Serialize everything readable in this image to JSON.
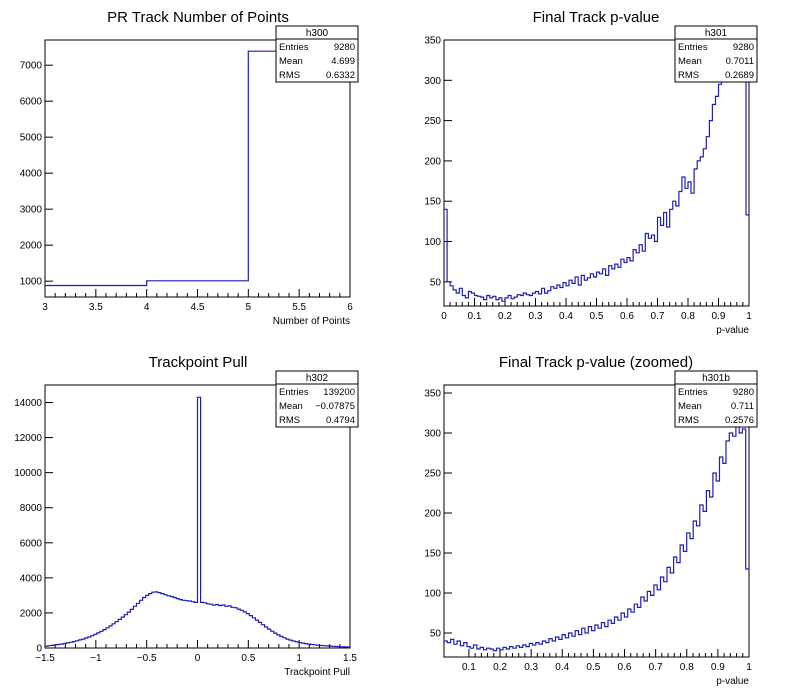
{
  "chart_data": [
    {
      "id": "h300",
      "type": "histogram",
      "title": "PR Track Number of Points",
      "xlabel": "Number of Points",
      "xlim": [
        3,
        6
      ],
      "ylim": [
        560,
        7700
      ],
      "x_ticks": [
        3,
        3.5,
        4,
        4.5,
        5,
        5.5,
        6
      ],
      "x_tick_labels": [
        "3",
        "3.5",
        "4",
        "4.5",
        "5",
        "5.5",
        "6"
      ],
      "y_ticks": [
        1000,
        2000,
        3000,
        4000,
        5000,
        6000,
        7000
      ],
      "y_tick_labels": [
        "1000",
        "2000",
        "3000",
        "4000",
        "5000",
        "6000",
        "7000"
      ],
      "bin_edges": [
        3,
        4,
        5,
        6
      ],
      "values": [
        880,
        1010,
        7390
      ],
      "stats": {
        "name": "h300",
        "rows": [
          {
            "label": "Entries",
            "value": "9280"
          },
          {
            "label": "Mean",
            "value": "4.699"
          },
          {
            "label": "RMS",
            "value": "0.6332"
          }
        ]
      }
    },
    {
      "id": "h301",
      "type": "histogram",
      "title": "Final Track p-value",
      "xlabel": "p-value",
      "xlim": [
        0,
        1
      ],
      "ylim": [
        20,
        350
      ],
      "x_ticks": [
        0,
        0.1,
        0.2,
        0.3,
        0.4,
        0.5,
        0.6,
        0.7,
        0.8,
        0.9,
        1
      ],
      "x_tick_labels": [
        "0",
        "0.1",
        "0.2",
        "0.3",
        "0.4",
        "0.5",
        "0.6",
        "0.7",
        "0.8",
        "0.9",
        "1"
      ],
      "y_ticks": [
        50,
        100,
        150,
        200,
        250,
        300,
        350
      ],
      "y_tick_labels": [
        "50",
        "100",
        "150",
        "200",
        "250",
        "300",
        "350"
      ],
      "bin_range": [
        0,
        1
      ],
      "values": [
        140,
        50,
        45,
        40,
        36,
        42,
        33,
        30,
        38,
        36,
        33,
        32,
        31,
        28,
        33,
        30,
        32,
        28,
        30,
        26,
        30,
        33,
        29,
        31,
        34,
        33,
        36,
        34,
        33,
        36,
        38,
        35,
        42,
        36,
        39,
        44,
        42,
        46,
        43,
        49,
        45,
        52,
        48,
        56,
        46,
        58,
        52,
        55,
        60,
        56,
        62,
        60,
        66,
        58,
        70,
        66,
        72,
        68,
        78,
        74,
        80,
        76,
        90,
        86,
        96,
        88,
        110,
        104,
        108,
        100,
        130,
        120,
        136,
        118,
        140,
        150,
        144,
        162,
        180,
        166,
        174,
        160,
        190,
        200,
        205,
        215,
        230,
        250,
        270,
        280,
        295,
        300,
        298,
        305,
        325,
        330,
        320,
        345,
        310,
        133
      ],
      "stats": {
        "name": "h301",
        "rows": [
          {
            "label": "Entries",
            "value": "9280"
          },
          {
            "label": "Mean",
            "value": "0.7011"
          },
          {
            "label": "RMS",
            "value": "0.2689"
          }
        ]
      }
    },
    {
      "id": "h302",
      "type": "histogram",
      "title": "Trackpoint Pull",
      "xlabel": "Trackpoint Pull",
      "xlim": [
        -1.5,
        1.5
      ],
      "ylim": [
        0,
        15000
      ],
      "x_ticks": [
        -1.5,
        -1,
        -0.5,
        0,
        0.5,
        1,
        1.5
      ],
      "x_tick_labels": [
        "−1.5",
        "−1",
        "−0.5",
        "0",
        "0.5",
        "1",
        "1.5"
      ],
      "y_ticks": [
        0,
        2000,
        4000,
        6000,
        8000,
        10000,
        12000,
        14000
      ],
      "y_tick_labels": [
        "0",
        "2000",
        "4000",
        "6000",
        "8000",
        "10000",
        "12000",
        "14000"
      ],
      "bin_range": [
        -1.5,
        1.5
      ],
      "values": [
        110,
        130,
        150,
        175,
        200,
        225,
        255,
        290,
        325,
        365,
        410,
        460,
        510,
        570,
        630,
        700,
        780,
        860,
        950,
        1050,
        1150,
        1260,
        1380,
        1500,
        1630,
        1760,
        1900,
        2050,
        2200,
        2380,
        2550,
        2720,
        2880,
        3000,
        3100,
        3180,
        3200,
        3160,
        3100,
        3040,
        2980,
        2940,
        2880,
        2820,
        2760,
        2720,
        2700,
        2680,
        2640,
        2600,
        14300,
        2600,
        2580,
        2520,
        2500,
        2440,
        2480,
        2420,
        2450,
        2380,
        2400,
        2320,
        2300,
        2220,
        2150,
        2060,
        1960,
        1850,
        1720,
        1590,
        1460,
        1330,
        1200,
        1080,
        960,
        850,
        750,
        660,
        580,
        510,
        450,
        400,
        355,
        315,
        280,
        250,
        225,
        200,
        180,
        160,
        145,
        130,
        118,
        106,
        95,
        86,
        78,
        70,
        62,
        55
      ],
      "stats": {
        "name": "h302",
        "rows": [
          {
            "label": "Entries",
            "value": "139200"
          },
          {
            "label": "Mean",
            "value": "−0.07875"
          },
          {
            "label": "RMS",
            "value": "0.4794"
          }
        ]
      }
    },
    {
      "id": "h301b",
      "type": "histogram",
      "title": "Final Track p-value (zoomed)",
      "xlabel": "p-value",
      "xlim": [
        0.02,
        1
      ],
      "ylim": [
        20,
        360
      ],
      "x_ticks": [
        0.1,
        0.2,
        0.3,
        0.4,
        0.5,
        0.6,
        0.7,
        0.8,
        0.9,
        1
      ],
      "x_tick_labels": [
        "0.1",
        "0.2",
        "0.3",
        "0.4",
        "0.5",
        "0.6",
        "0.7",
        "0.8",
        "0.9",
        "1"
      ],
      "y_ticks": [
        50,
        100,
        150,
        200,
        250,
        300,
        350
      ],
      "y_tick_labels": [
        "50",
        "100",
        "150",
        "200",
        "250",
        "300",
        "350"
      ],
      "bin_range": [
        0.02,
        1
      ],
      "values": [
        40,
        38,
        42,
        36,
        40,
        34,
        38,
        33,
        31,
        35,
        30,
        32,
        29,
        31,
        30,
        28,
        31,
        29,
        32,
        30,
        33,
        31,
        34,
        32,
        35,
        33,
        37,
        35,
        38,
        36,
        40,
        38,
        43,
        40,
        45,
        42,
        48,
        44,
        50,
        46,
        53,
        48,
        56,
        50,
        58,
        53,
        60,
        56,
        63,
        58,
        66,
        62,
        70,
        66,
        75,
        70,
        80,
        76,
        86,
        82,
        95,
        90,
        102,
        97,
        110,
        104,
        120,
        114,
        132,
        125,
        145,
        138,
        160,
        152,
        175,
        168,
        190,
        184,
        210,
        202,
        228,
        220,
        250,
        240,
        270,
        262,
        290,
        300,
        296,
        315,
        300,
        305,
        130
      ],
      "stats": {
        "name": "h301b",
        "rows": [
          {
            "label": "Entries",
            "value": "9280"
          },
          {
            "label": "Mean",
            "value": "0.711"
          },
          {
            "label": "RMS",
            "value": "0.2576"
          }
        ]
      }
    }
  ],
  "colors": {
    "line": "#1f1fb4",
    "axis": "#000000",
    "background": "#ffffff"
  }
}
